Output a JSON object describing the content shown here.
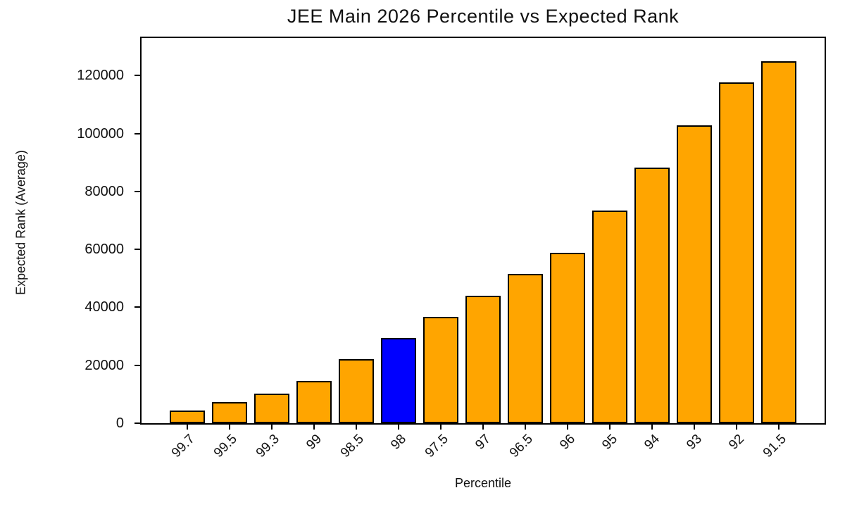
{
  "chart_data": {
    "type": "bar",
    "title": "JEE Main 2026 Percentile vs Expected Rank",
    "xlabel": "Percentile",
    "ylabel": "Expected Rank (Average)",
    "categories": [
      "99.7",
      "99.5",
      "99.3",
      "99",
      "98.5",
      "98",
      "97.5",
      "97",
      "96.5",
      "96",
      "95",
      "94",
      "93",
      "92",
      "91.5"
    ],
    "values": [
      4410,
      7350,
      10290,
      14700,
      22050,
      29400,
      36750,
      44100,
      51450,
      58800,
      73500,
      88200,
      102900,
      117600,
      124950
    ],
    "yticks": [
      0,
      20000,
      40000,
      60000,
      80000,
      100000,
      120000
    ],
    "ylim": [
      0,
      133000
    ],
    "x_tick_rotation": 45,
    "grid": false,
    "legend": "none",
    "bar_color": "#FFA500",
    "edge_color": "#000000",
    "highlight": {
      "index": 5,
      "category": "98",
      "color": "#0000FF"
    }
  }
}
